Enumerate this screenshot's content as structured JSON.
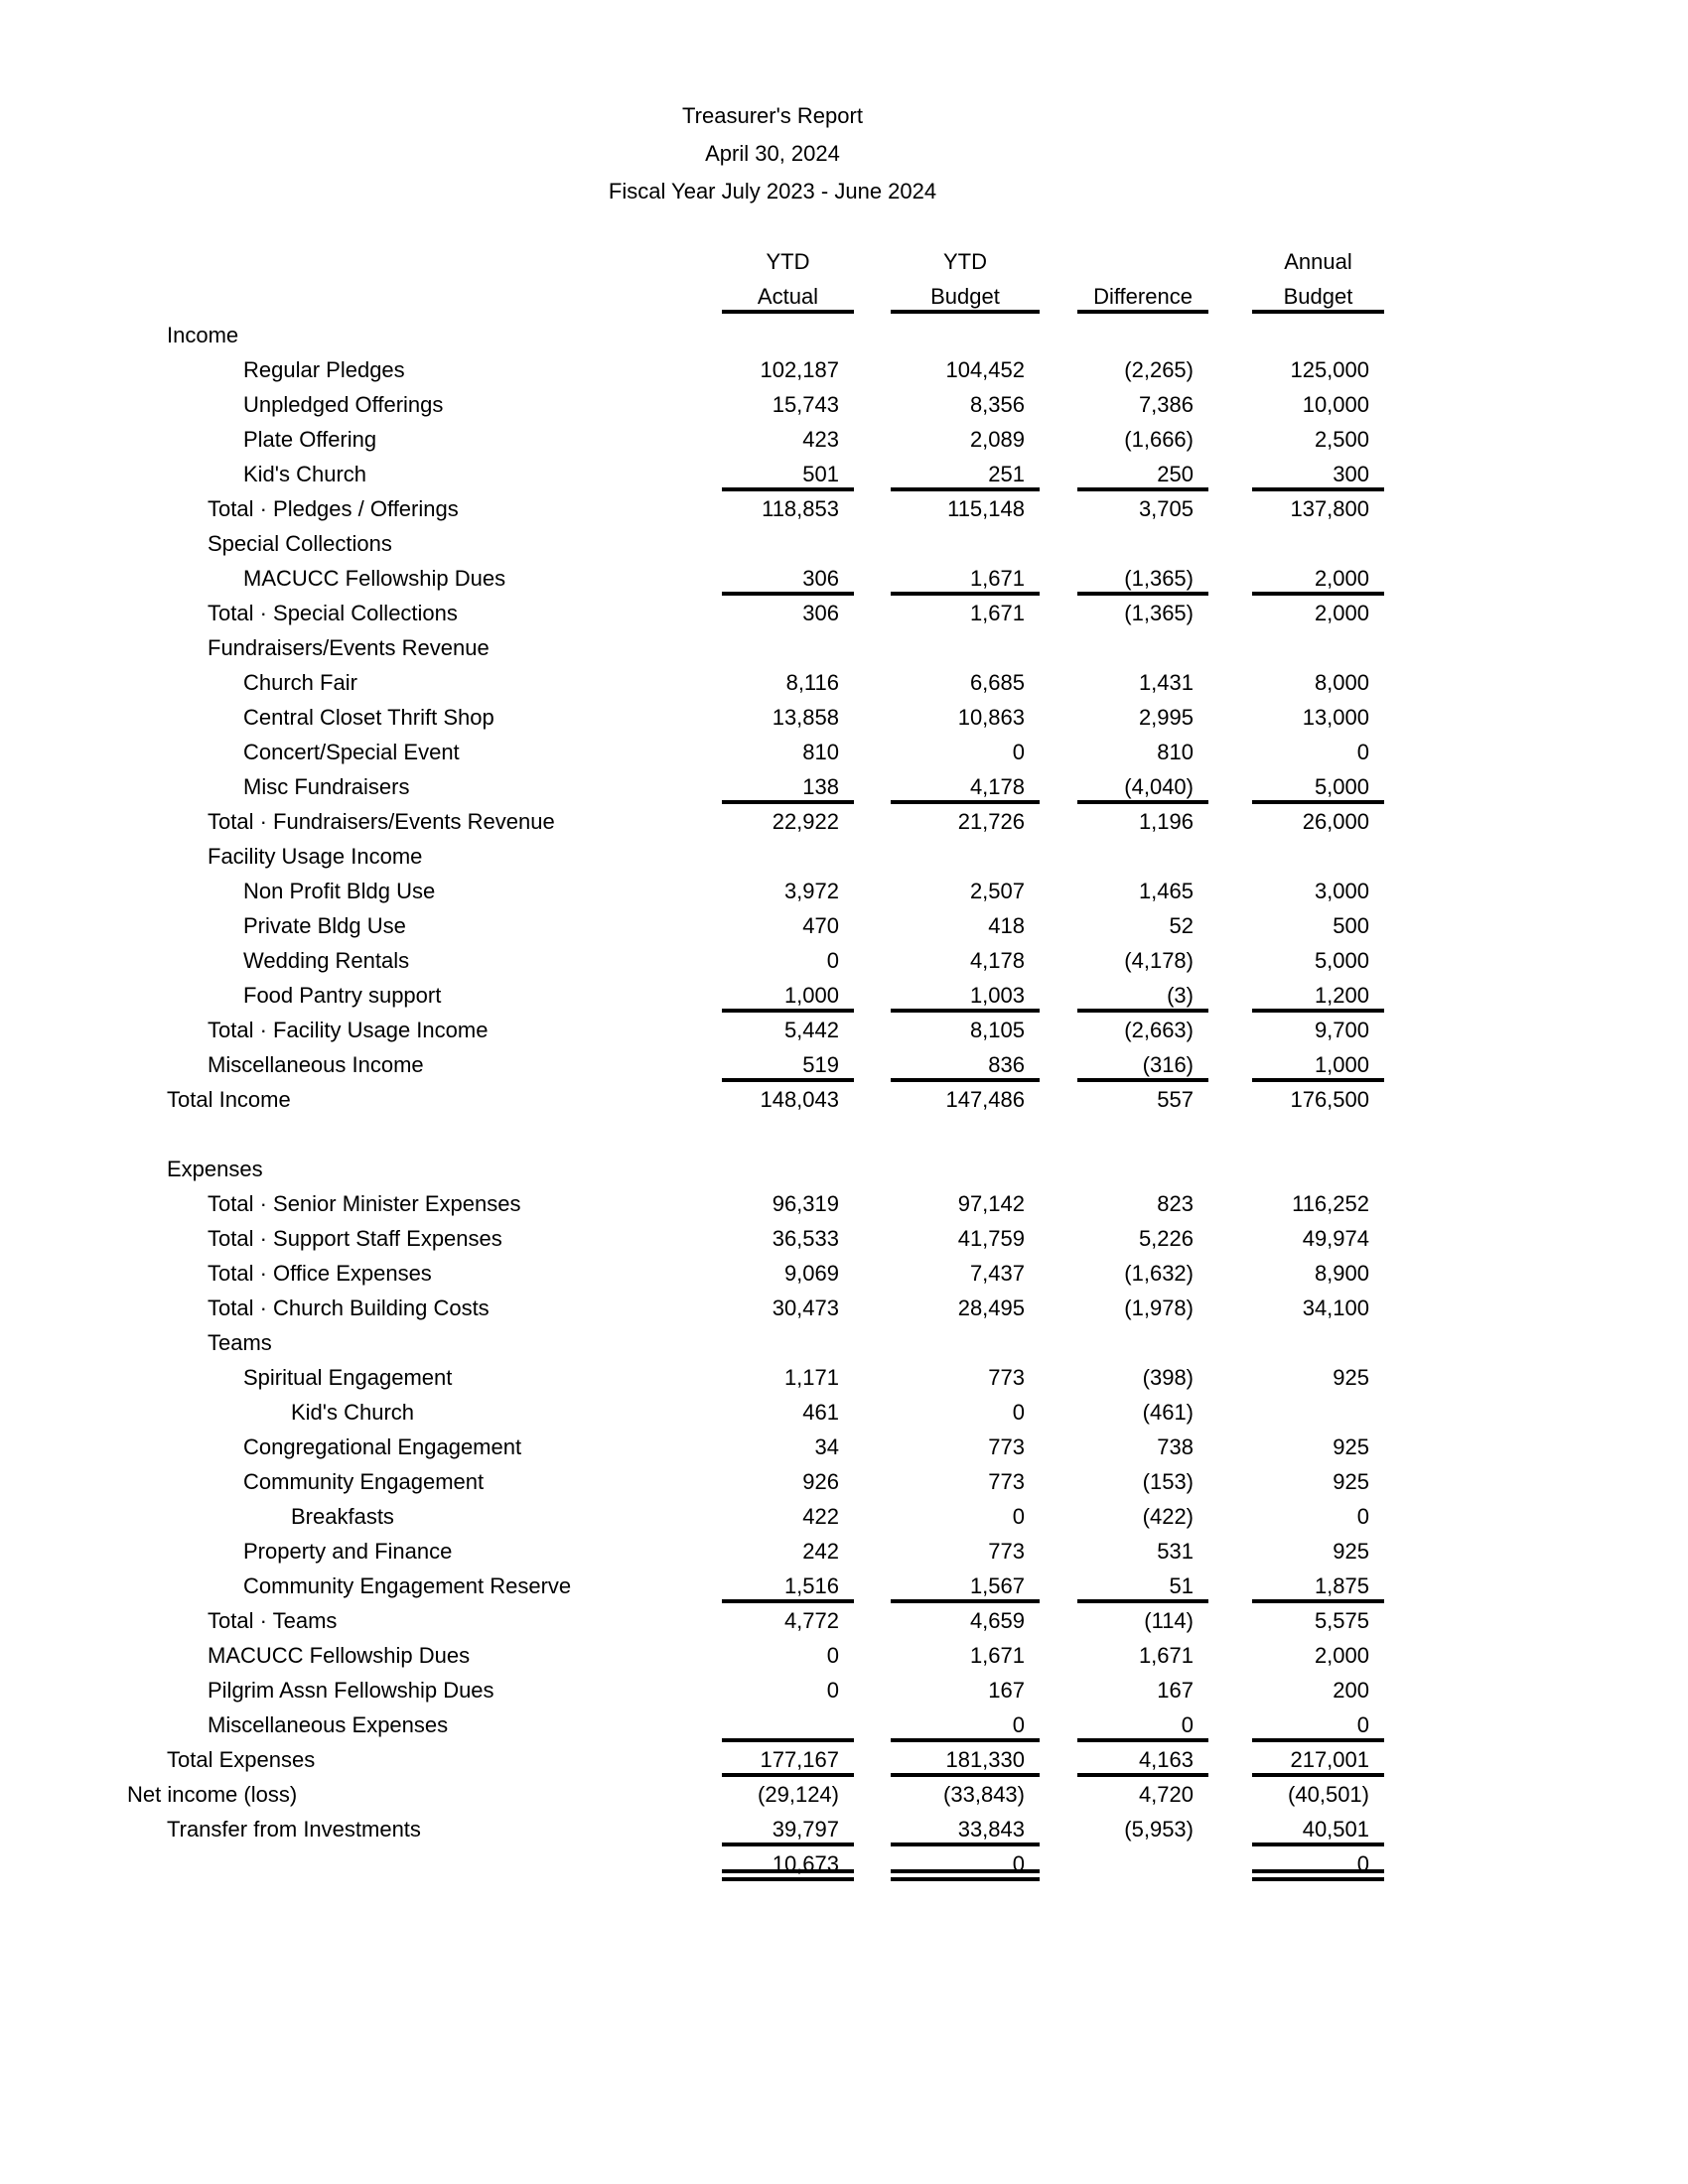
{
  "page": {
    "background_color": "#ffffff",
    "text_color": "#000000"
  },
  "title": {
    "report_title": "Treasurer's Report",
    "report_date": "April 30, 2024",
    "fiscal_year": "Fiscal Year July 2023 - June 2024"
  },
  "table": {
    "column_headers": {
      "ytd_actual_top": "YTD",
      "ytd_actual_bottom": "Actual",
      "ytd_budget_top": "YTD",
      "ytd_budget_bottom": "Budget",
      "difference_top": "",
      "difference_bottom": "Difference",
      "annual_budget_top": "Annual",
      "annual_budget_bottom": "Budget"
    },
    "rows": [
      {
        "label": "Income",
        "indent": 1,
        "values": [
          "",
          "",
          "",
          ""
        ],
        "rule": null
      },
      {
        "label": "Regular Pledges",
        "indent": 3,
        "values": [
          "102,187",
          "104,452",
          "(2,265)",
          "125,000"
        ],
        "rule": null
      },
      {
        "label": "Unpledged Offerings",
        "indent": 3,
        "values": [
          "15,743",
          "8,356",
          "7,386",
          "10,000"
        ],
        "rule": null
      },
      {
        "label": "Plate Offering",
        "indent": 3,
        "values": [
          "423",
          "2,089",
          "(1,666)",
          "2,500"
        ],
        "rule": null
      },
      {
        "label": "Kid's Church",
        "indent": 3,
        "values": [
          "501",
          "251",
          "250",
          "300"
        ],
        "rule": "single"
      },
      {
        "label": "Total · Pledges / Offerings",
        "indent": 2,
        "values": [
          "118,853",
          "115,148",
          "3,705",
          "137,800"
        ],
        "rule": null
      },
      {
        "label": "Special Collections",
        "indent": 2,
        "values": [
          "",
          "",
          "",
          ""
        ],
        "rule": null
      },
      {
        "label": "MACUCC Fellowship Dues",
        "indent": 3,
        "values": [
          "306",
          "1,671",
          "(1,365)",
          "2,000"
        ],
        "rule": "single"
      },
      {
        "label": "Total · Special Collections",
        "indent": 2,
        "values": [
          "306",
          "1,671",
          "(1,365)",
          "2,000"
        ],
        "rule": null
      },
      {
        "label": "Fundraisers/Events Revenue",
        "indent": 2,
        "values": [
          "",
          "",
          "",
          ""
        ],
        "rule": null
      },
      {
        "label": "Church Fair",
        "indent": 3,
        "values": [
          "8,116",
          "6,685",
          "1,431",
          "8,000"
        ],
        "rule": null
      },
      {
        "label": "Central Closet Thrift Shop",
        "indent": 3,
        "values": [
          "13,858",
          "10,863",
          "2,995",
          "13,000"
        ],
        "rule": null
      },
      {
        "label": "Concert/Special Event",
        "indent": 3,
        "values": [
          "810",
          "0",
          "810",
          "0"
        ],
        "rule": null
      },
      {
        "label": "Misc Fundraisers",
        "indent": 3,
        "values": [
          "138",
          "4,178",
          "(4,040)",
          "5,000"
        ],
        "rule": "single"
      },
      {
        "label": "Total · Fundraisers/Events Revenue",
        "indent": 2,
        "values": [
          "22,922",
          "21,726",
          "1,196",
          "26,000"
        ],
        "rule": null
      },
      {
        "label": "Facility Usage Income",
        "indent": 2,
        "values": [
          "",
          "",
          "",
          ""
        ],
        "rule": null
      },
      {
        "label": "Non Profit Bldg Use",
        "indent": 3,
        "values": [
          "3,972",
          "2,507",
          "1,465",
          "3,000"
        ],
        "rule": null
      },
      {
        "label": "Private Bldg Use",
        "indent": 3,
        "values": [
          "470",
          "418",
          "52",
          "500"
        ],
        "rule": null
      },
      {
        "label": "Wedding Rentals",
        "indent": 3,
        "values": [
          "0",
          "4,178",
          "(4,178)",
          "5,000"
        ],
        "rule": null
      },
      {
        "label": "Food Pantry support",
        "indent": 3,
        "values": [
          "1,000",
          "1,003",
          "(3)",
          "1,200"
        ],
        "rule": "single"
      },
      {
        "label": "Total · Facility Usage Income",
        "indent": 2,
        "values": [
          "5,442",
          "8,105",
          "(2,663)",
          "9,700"
        ],
        "rule": null
      },
      {
        "label": "Miscellaneous Income",
        "indent": 2,
        "values": [
          "519",
          "836",
          "(316)",
          "1,000"
        ],
        "rule": "single"
      },
      {
        "label": "Total Income",
        "indent": 1,
        "values": [
          "148,043",
          "147,486",
          "557",
          "176,500"
        ],
        "rule": null
      },
      {
        "spacer": true
      },
      {
        "label": "Expenses",
        "indent": 1,
        "values": [
          "",
          "",
          "",
          ""
        ],
        "rule": null
      },
      {
        "label": "Total · Senior Minister Expenses",
        "indent": 2,
        "values": [
          "96,319",
          "97,142",
          "823",
          "116,252"
        ],
        "rule": null
      },
      {
        "label": "Total · Support Staff Expenses",
        "indent": 2,
        "values": [
          "36,533",
          "41,759",
          "5,226",
          "49,974"
        ],
        "rule": null
      },
      {
        "label": "Total · Office Expenses",
        "indent": 2,
        "values": [
          "9,069",
          "7,437",
          "(1,632)",
          "8,900"
        ],
        "rule": null
      },
      {
        "label": "Total · Church Building Costs",
        "indent": 2,
        "values": [
          "30,473",
          "28,495",
          "(1,978)",
          "34,100"
        ],
        "rule": null
      },
      {
        "label": "Teams",
        "indent": 2,
        "values": [
          "",
          "",
          "",
          ""
        ],
        "rule": null
      },
      {
        "label": "Spiritual Engagement",
        "indent": 3,
        "values": [
          "1,171",
          "773",
          "(398)",
          "925"
        ],
        "rule": null
      },
      {
        "label": "Kid's Church",
        "indent": 4,
        "values": [
          "461",
          "0",
          "(461)",
          ""
        ],
        "rule": null
      },
      {
        "label": "Congregational Engagement",
        "indent": 3,
        "values": [
          "34",
          "773",
          "738",
          "925"
        ],
        "rule": null
      },
      {
        "label": "Community Engagement",
        "indent": 3,
        "values": [
          "926",
          "773",
          "(153)",
          "925"
        ],
        "rule": null
      },
      {
        "label": "Breakfasts",
        "indent": 4,
        "values": [
          "422",
          "0",
          "(422)",
          "0"
        ],
        "rule": null
      },
      {
        "label": "Property and Finance",
        "indent": 3,
        "values": [
          "242",
          "773",
          "531",
          "925"
        ],
        "rule": null
      },
      {
        "label": "Community Engagement Reserve",
        "indent": 3,
        "values": [
          "1,516",
          "1,567",
          "51",
          "1,875"
        ],
        "rule": "single"
      },
      {
        "label": "Total · Teams",
        "indent": 2,
        "values": [
          "4,772",
          "4,659",
          "(114)",
          "5,575"
        ],
        "rule": null
      },
      {
        "label": "MACUCC Fellowship Dues",
        "indent": 2,
        "values": [
          "0",
          "1,671",
          "1,671",
          "2,000"
        ],
        "rule": null
      },
      {
        "label": "Pilgrim Assn Fellowship Dues",
        "indent": 2,
        "values": [
          "0",
          "167",
          "167",
          "200"
        ],
        "rule": null
      },
      {
        "label": "Miscellaneous Expenses",
        "indent": 2,
        "values": [
          "",
          "0",
          "0",
          "0"
        ],
        "rule": "single"
      },
      {
        "label": "Total Expenses",
        "indent": 1,
        "values": [
          "177,167",
          "181,330",
          "4,163",
          "217,001"
        ],
        "rule": "single"
      },
      {
        "label": "Net income (loss)",
        "indent": 0,
        "values": [
          "(29,124)",
          "(33,843)",
          "4,720",
          "(40,501)"
        ],
        "rule": null
      },
      {
        "label": "Transfer from Investments",
        "indent": 1,
        "values": [
          "39,797",
          "33,843",
          "(5,953)",
          "40,501"
        ],
        "rule": "single_no_diff"
      },
      {
        "label": "",
        "indent": 1,
        "values": [
          "10,673",
          "0",
          "",
          "0"
        ],
        "rule": "double_no_diff"
      }
    ]
  }
}
